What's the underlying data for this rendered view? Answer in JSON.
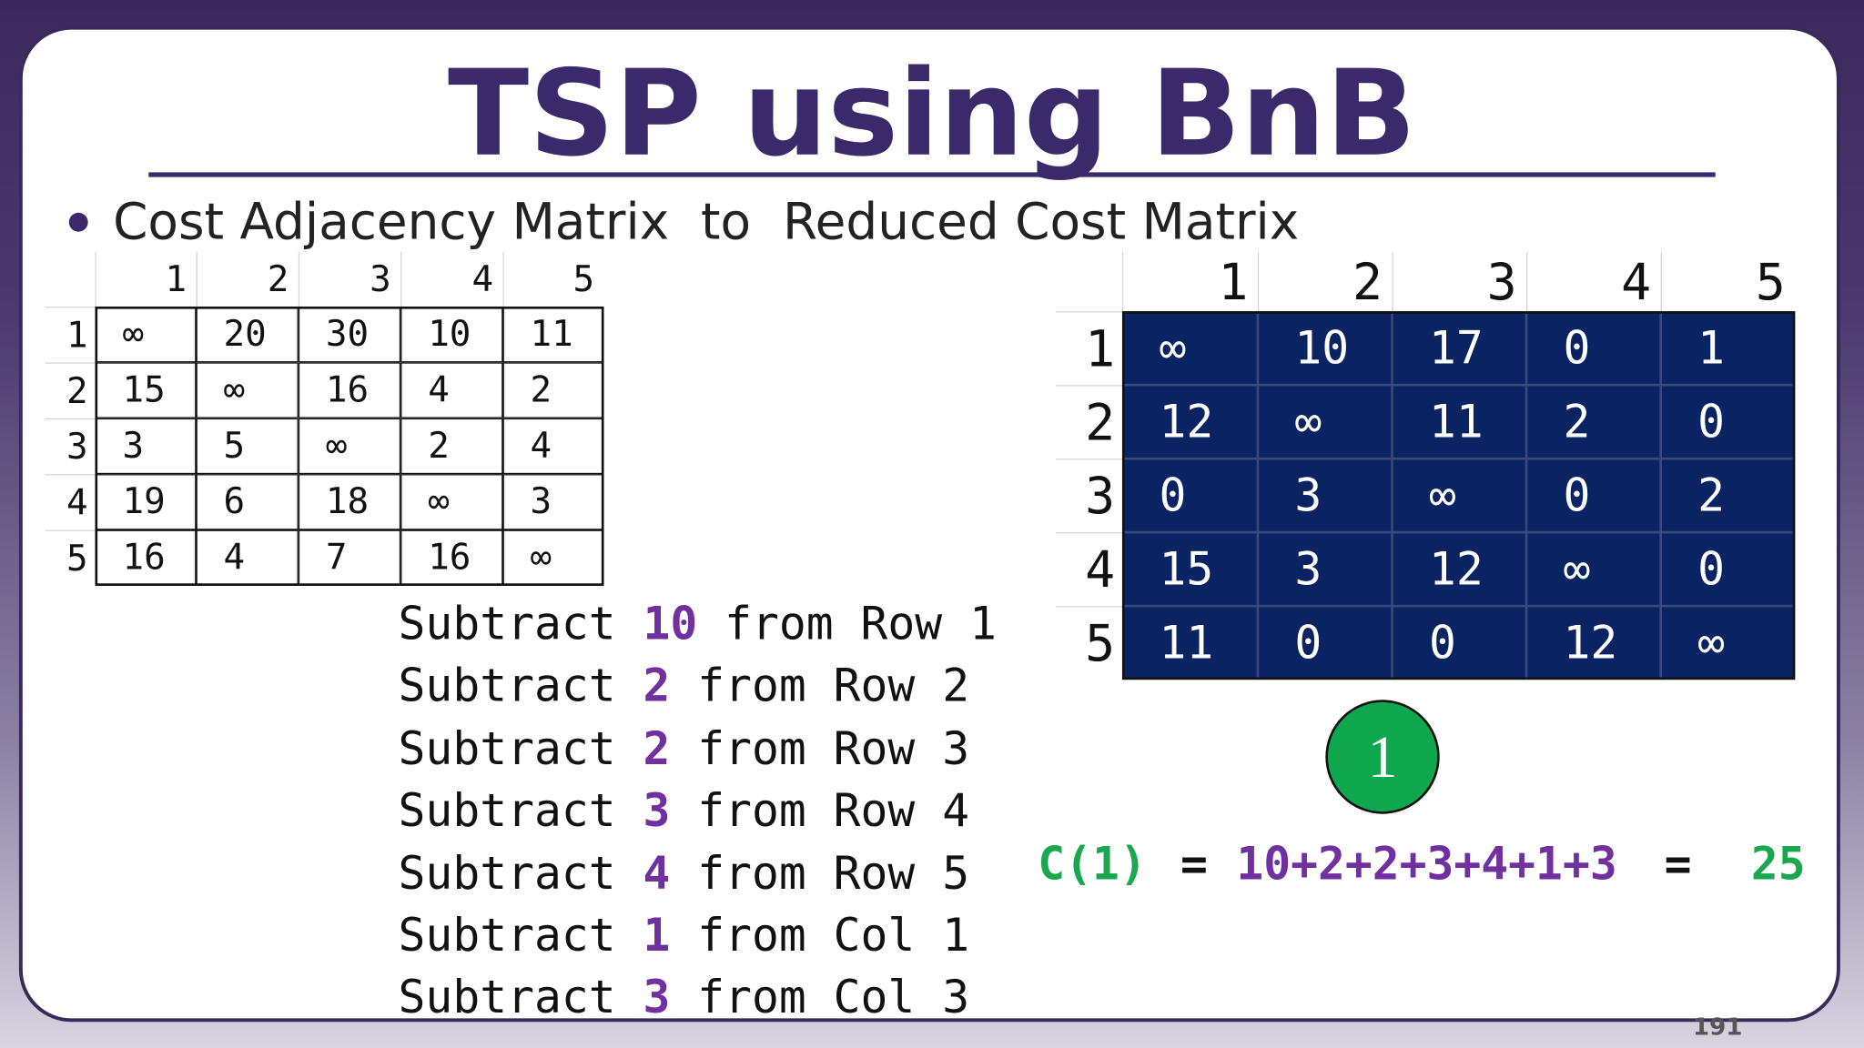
{
  "header": {
    "title": "TSP using BnB",
    "bullet": "Cost Adjacency Matrix  to  Reduced Cost Matrix"
  },
  "cost_matrix": {
    "column_headers": [
      "1",
      "2",
      "3",
      "4",
      "5"
    ],
    "row_headers": [
      "1",
      "2",
      "3",
      "4",
      "5"
    ],
    "rows": [
      [
        "∞",
        "20",
        "30",
        "10",
        "11"
      ],
      [
        "15",
        "∞",
        "16",
        "4",
        "2"
      ],
      [
        "3",
        "5",
        "∞",
        "2",
        "4"
      ],
      [
        "19",
        "6",
        "18",
        "∞",
        "3"
      ],
      [
        "16",
        "4",
        "7",
        "16",
        "∞"
      ]
    ]
  },
  "reduced_matrix": {
    "column_headers": [
      "1",
      "2",
      "3",
      "4",
      "5"
    ],
    "row_headers": [
      "1",
      "2",
      "3",
      "4",
      "5"
    ],
    "rows": [
      [
        "∞",
        "10",
        "17",
        "0",
        "1"
      ],
      [
        "12",
        "∞",
        "11",
        "2",
        "0"
      ],
      [
        "0",
        "3",
        "∞",
        "0",
        "2"
      ],
      [
        "15",
        "3",
        "12",
        "∞",
        "0"
      ],
      [
        "11",
        "0",
        "0",
        "12",
        "∞"
      ]
    ]
  },
  "steps": [
    {
      "verb": "Subtract",
      "amount": "10",
      "target": "from Row 1"
    },
    {
      "verb": "Subtract",
      "amount": "2",
      "target": "from Row 2"
    },
    {
      "verb": "Subtract",
      "amount": "2",
      "target": "from Row 3"
    },
    {
      "verb": "Subtract",
      "amount": "3",
      "target": "from Row 4"
    },
    {
      "verb": "Subtract",
      "amount": "4",
      "target": "from Row 5"
    },
    {
      "verb": "Subtract",
      "amount": "1",
      "target": "from Col 1"
    },
    {
      "verb": "Subtract",
      "amount": "3",
      "target": "from Col 3"
    }
  ],
  "node": {
    "label": "1"
  },
  "formula": {
    "lhs": "C(1)",
    "eq1": "=",
    "terms": "10+2+2+3+4+1+3",
    "eq2": "=",
    "result": "25"
  },
  "page_number": "191"
}
